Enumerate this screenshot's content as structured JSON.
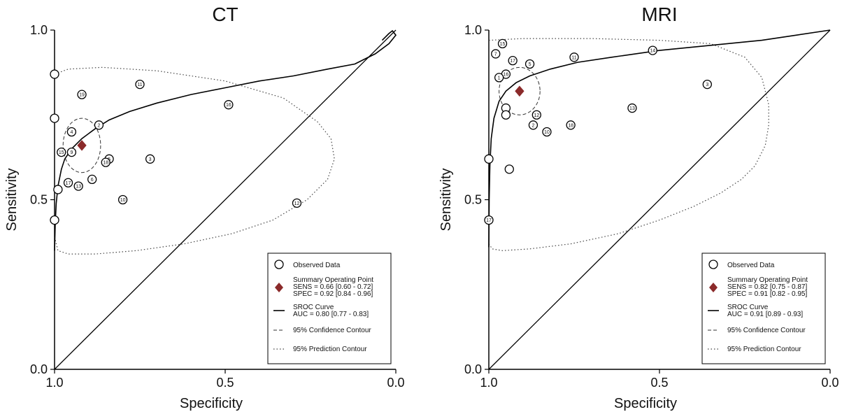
{
  "chart_data": [
    {
      "type": "scatter",
      "title": "CT",
      "xlabel": "Specificity",
      "ylabel": "Sensitivity",
      "xlim": [
        1.0,
        0.0
      ],
      "ylim": [
        0.0,
        1.0
      ],
      "x_ticks": [
        "1.0",
        "0.5",
        "0.0"
      ],
      "y_ticks": [
        "0.0",
        "0.5",
        "1.0"
      ],
      "grid": false,
      "legend_position": "bottom-right",
      "legend": {
        "observed": "Observed Data",
        "summary_title": "Summary Operating Point",
        "summary_sens": "SENS = 0.66 [0.60 - 0.72]",
        "summary_spec": "SPEC = 0.92 [0.84 - 0.96]",
        "sroc_title": "SROC Curve",
        "sroc_auc": "AUC = 0.80 [0.77 - 0.83]",
        "confidence": "95% Confidence Contour",
        "prediction": "95% Prediction Contour"
      },
      "summary_point": {
        "spec": 0.92,
        "sens": 0.66
      },
      "studies": [
        {
          "label": "",
          "spec": 1.0,
          "sens": 0.87
        },
        {
          "label": "",
          "spec": 1.0,
          "sens": 0.74
        },
        {
          "label": "19",
          "spec": 0.92,
          "sens": 0.81
        },
        {
          "label": "11",
          "spec": 0.75,
          "sens": 0.84
        },
        {
          "label": "16",
          "spec": 0.49,
          "sens": 0.78
        },
        {
          "label": "2",
          "spec": 0.87,
          "sens": 0.72
        },
        {
          "label": "4",
          "spec": 0.95,
          "sens": 0.7
        },
        {
          "label": "15",
          "spec": 0.98,
          "sens": 0.64
        },
        {
          "label": "9",
          "spec": 0.95,
          "sens": 0.64
        },
        {
          "label": "3",
          "spec": 0.72,
          "sens": 0.62
        },
        {
          "label": "5",
          "spec": 0.84,
          "sens": 0.62
        },
        {
          "label": "18",
          "spec": 0.85,
          "sens": 0.61
        },
        {
          "label": "17",
          "spec": 0.96,
          "sens": 0.55
        },
        {
          "label": "",
          "spec": 0.99,
          "sens": 0.53
        },
        {
          "label": "13",
          "spec": 0.93,
          "sens": 0.54
        },
        {
          "label": "6",
          "spec": 0.89,
          "sens": 0.56
        },
        {
          "label": "10",
          "spec": 0.8,
          "sens": 0.5
        },
        {
          "label": "12",
          "spec": 0.29,
          "sens": 0.49
        },
        {
          "label": "",
          "spec": 1.0,
          "sens": 0.44
        }
      ],
      "sroc_curve": [
        [
          1.0,
          0.35
        ],
        [
          0.998,
          0.43
        ],
        [
          0.995,
          0.49
        ],
        [
          0.99,
          0.54
        ],
        [
          0.98,
          0.59
        ],
        [
          0.97,
          0.62
        ],
        [
          0.95,
          0.65
        ],
        [
          0.92,
          0.68
        ],
        [
          0.88,
          0.71
        ],
        [
          0.84,
          0.735
        ],
        [
          0.78,
          0.76
        ],
        [
          0.7,
          0.785
        ],
        [
          0.6,
          0.81
        ],
        [
          0.5,
          0.83
        ],
        [
          0.4,
          0.85
        ],
        [
          0.3,
          0.865
        ],
        [
          0.2,
          0.885
        ],
        [
          0.12,
          0.9
        ],
        [
          0.06,
          0.93
        ],
        [
          0.02,
          0.96
        ],
        [
          0.0,
          0.985
        ],
        [
          0.01,
          0.998
        ],
        [
          0.02,
          0.99
        ],
        [
          0.04,
          0.97
        ]
      ],
      "confidence_contour": {
        "center": [
          0.92,
          0.66
        ],
        "rx": 0.055,
        "ry": 0.08
      },
      "prediction_contour": [
        [
          1.0,
          0.39
        ],
        [
          0.99,
          0.35
        ],
        [
          0.96,
          0.34
        ],
        [
          0.88,
          0.34
        ],
        [
          0.76,
          0.35
        ],
        [
          0.62,
          0.37
        ],
        [
          0.48,
          0.4
        ],
        [
          0.36,
          0.44
        ],
        [
          0.26,
          0.5
        ],
        [
          0.2,
          0.56
        ],
        [
          0.18,
          0.62
        ],
        [
          0.19,
          0.68
        ],
        [
          0.23,
          0.73
        ],
        [
          0.33,
          0.8
        ],
        [
          0.5,
          0.85
        ],
        [
          0.7,
          0.88
        ],
        [
          0.86,
          0.89
        ],
        [
          0.96,
          0.885
        ],
        [
          1.0,
          0.87
        ]
      ]
    },
    {
      "type": "scatter",
      "title": "MRI",
      "xlabel": "Specificity",
      "ylabel": "Sensitivity",
      "xlim": [
        1.0,
        0.0
      ],
      "ylim": [
        0.0,
        1.0
      ],
      "x_ticks": [
        "1.0",
        "0.5",
        "0.0"
      ],
      "y_ticks": [
        "0.0",
        "0.5",
        "1.0"
      ],
      "grid": false,
      "legend_position": "bottom-right",
      "legend": {
        "observed": "Observed Data",
        "summary_title": "Summary Operating Point",
        "summary_sens": "SENS = 0.82 [0.75 - 0.87]",
        "summary_spec": "SPEC = 0.91 [0.82 - 0.95]",
        "sroc_title": "SROC Curve",
        "sroc_auc": "AUC = 0.91 [0.89 - 0.93]",
        "confidence": "95% Confidence Contour",
        "prediction": "95% Prediction Contour"
      },
      "summary_point": {
        "spec": 0.91,
        "sens": 0.82
      },
      "studies": [
        {
          "label": "15",
          "spec": 0.96,
          "sens": 0.96
        },
        {
          "label": "7",
          "spec": 0.98,
          "sens": 0.93
        },
        {
          "label": "17",
          "spec": 0.93,
          "sens": 0.91
        },
        {
          "label": "5",
          "spec": 0.88,
          "sens": 0.9
        },
        {
          "label": "11",
          "spec": 0.75,
          "sens": 0.92
        },
        {
          "label": "14",
          "spec": 0.52,
          "sens": 0.94
        },
        {
          "label": "16",
          "spec": 0.95,
          "sens": 0.87
        },
        {
          "label": "1",
          "spec": 0.97,
          "sens": 0.86
        },
        {
          "label": "3",
          "spec": 0.36,
          "sens": 0.84
        },
        {
          "label": "",
          "spec": 0.95,
          "sens": 0.77
        },
        {
          "label": "",
          "spec": 0.95,
          "sens": 0.75
        },
        {
          "label": "12",
          "spec": 0.86,
          "sens": 0.75
        },
        {
          "label": "2",
          "spec": 0.87,
          "sens": 0.72
        },
        {
          "label": "10",
          "spec": 0.83,
          "sens": 0.7
        },
        {
          "label": "18",
          "spec": 0.76,
          "sens": 0.72
        },
        {
          "label": "13",
          "spec": 0.58,
          "sens": 0.77
        },
        {
          "label": "",
          "spec": 1.0,
          "sens": 0.62
        },
        {
          "label": "",
          "spec": 0.94,
          "sens": 0.59
        },
        {
          "label": "17",
          "spec": 1.0,
          "sens": 0.44
        }
      ],
      "sroc_curve": [
        [
          1.0,
          0.36
        ],
        [
          0.999,
          0.5
        ],
        [
          0.997,
          0.6
        ],
        [
          0.993,
          0.68
        ],
        [
          0.985,
          0.74
        ],
        [
          0.97,
          0.79
        ],
        [
          0.95,
          0.82
        ],
        [
          0.92,
          0.845
        ],
        [
          0.88,
          0.865
        ],
        [
          0.82,
          0.885
        ],
        [
          0.74,
          0.905
        ],
        [
          0.64,
          0.92
        ],
        [
          0.5,
          0.94
        ],
        [
          0.35,
          0.955
        ],
        [
          0.2,
          0.97
        ],
        [
          0.1,
          0.985
        ],
        [
          0.0,
          1.0
        ]
      ],
      "confidence_contour": {
        "center": [
          0.91,
          0.82
        ],
        "rx": 0.06,
        "ry": 0.07
      },
      "prediction_contour": [
        [
          1.0,
          0.37
        ],
        [
          0.99,
          0.355
        ],
        [
          0.96,
          0.35
        ],
        [
          0.88,
          0.355
        ],
        [
          0.76,
          0.37
        ],
        [
          0.62,
          0.4
        ],
        [
          0.5,
          0.44
        ],
        [
          0.4,
          0.48
        ],
        [
          0.32,
          0.52
        ],
        [
          0.26,
          0.56
        ],
        [
          0.22,
          0.6
        ],
        [
          0.19,
          0.66
        ],
        [
          0.18,
          0.72
        ],
        [
          0.18,
          0.78
        ],
        [
          0.2,
          0.86
        ],
        [
          0.25,
          0.92
        ],
        [
          0.35,
          0.96
        ],
        [
          0.5,
          0.97
        ],
        [
          0.7,
          0.975
        ],
        [
          0.9,
          0.975
        ],
        [
          1.0,
          0.97
        ]
      ]
    }
  ]
}
